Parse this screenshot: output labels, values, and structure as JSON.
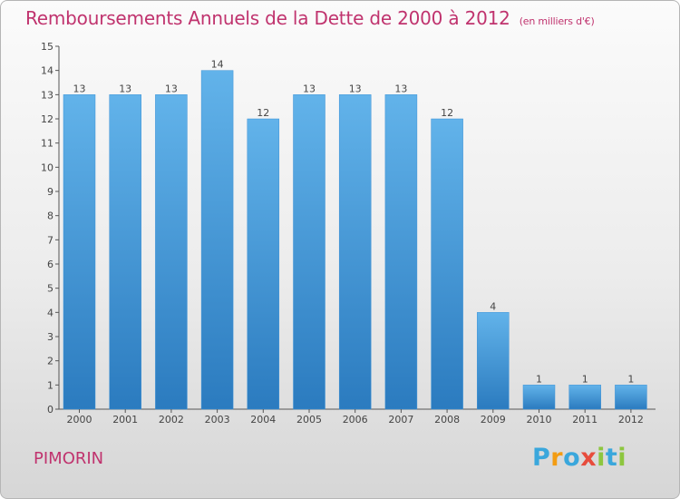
{
  "title": "Remboursements Annuels de la Dette de 2000 à 2012",
  "unit": "(en milliers d'€)",
  "commune": "PIMORIN",
  "logo": {
    "letters": [
      "P",
      "r",
      "o",
      "x",
      "i",
      "t",
      "i"
    ],
    "colors": [
      "#3aa7dc",
      "#f39c12",
      "#3aa7dc",
      "#e74c3c",
      "#8dc63f",
      "#3aa7dc",
      "#8dc63f"
    ]
  },
  "colors": {
    "title": "#c0336e",
    "bar_light": "#62b3ea",
    "bar_dark": "#2b7bbf"
  },
  "chart_data": {
    "type": "bar",
    "categories": [
      "2000",
      "2001",
      "2002",
      "2003",
      "2004",
      "2005",
      "2006",
      "2007",
      "2008",
      "2009",
      "2010",
      "2011",
      "2012"
    ],
    "values": [
      13,
      13,
      13,
      14,
      12,
      13,
      13,
      13,
      12,
      4,
      1,
      1,
      1
    ],
    "title": "Remboursements Annuels de la Dette de 2000 à 2012",
    "subtitle": "(en milliers d'€)",
    "xlabel": "",
    "ylabel": "",
    "ylim": [
      0,
      15
    ],
    "yticks": [
      "0",
      "1",
      "2",
      "3",
      "4",
      "5",
      "6",
      "7",
      "8",
      "9",
      "10",
      "11",
      "12",
      "13",
      "14",
      "15"
    ],
    "data_labels": [
      "13",
      "13",
      "13",
      "14",
      "12",
      "13",
      "13",
      "13",
      "12",
      "4",
      "1",
      "1",
      "1"
    ],
    "grid": false,
    "legend": "none"
  }
}
